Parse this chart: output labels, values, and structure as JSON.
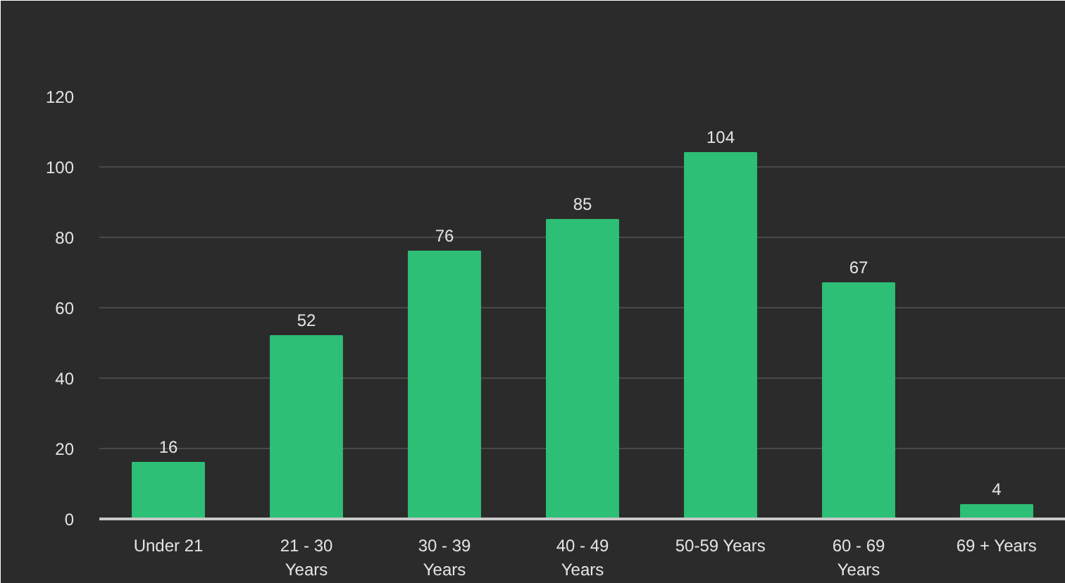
{
  "chart_data": {
    "type": "bar",
    "categories": [
      "Under 21",
      "21 - 30 Years",
      "30 - 39 Years",
      "40 - 49 Years",
      "50-59 Years",
      "60 - 69 Years",
      "69 + Years"
    ],
    "values": [
      16,
      52,
      76,
      85,
      104,
      67,
      4
    ],
    "color": "#2dbf76",
    "ylim": [
      0,
      120
    ],
    "yticks": [
      0,
      20,
      40,
      60,
      80,
      100,
      120
    ],
    "grid": "y",
    "data_labels": true
  }
}
